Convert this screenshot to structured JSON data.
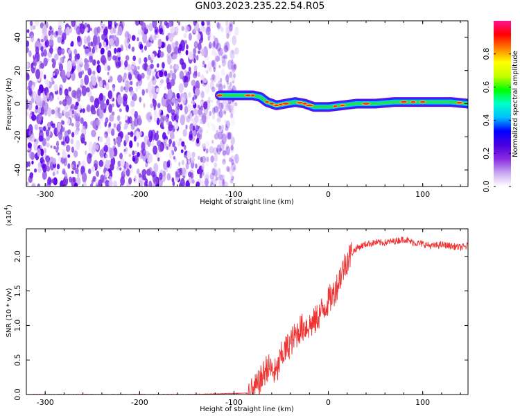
{
  "title": "GN03.2023.235.22.54.R05",
  "chart_data": [
    {
      "type": "heatmap",
      "xlabel": "Height of straight line (km)",
      "ylabel": "Frequency (Hz)",
      "xlim": [
        -320,
        148
      ],
      "ylim": [
        -50,
        50
      ],
      "xticks": [
        -300,
        -200,
        -100,
        0,
        100
      ],
      "yticks": [
        -40,
        -20,
        0,
        20,
        40
      ],
      "colorbar": {
        "label": "Normalized spectral amplitude",
        "range": [
          0,
          1
        ],
        "ticks": [
          "0.0",
          "0.2",
          "0.4",
          "0.6",
          "0.8"
        ],
        "colors": [
          "#ffffff",
          "#c8a6f0",
          "#8a2be2",
          "#4b00e0",
          "#0000ff",
          "#00bfff",
          "#00ffc8",
          "#00ff00",
          "#c8ff00",
          "#ffff00",
          "#ff8000",
          "#ff0000",
          "#ff1493"
        ]
      },
      "noise_region": {
        "x_range": [
          -320,
          -97
        ],
        "y_range": [
          -50,
          50
        ],
        "amplitude": "low"
      },
      "signal_ridge": [
        {
          "x": -115,
          "y": 5
        },
        {
          "x": -100,
          "y": 5
        },
        {
          "x": -90,
          "y": 5
        },
        {
          "x": -80,
          "y": 5
        },
        {
          "x": -72,
          "y": 4
        },
        {
          "x": -65,
          "y": 1
        },
        {
          "x": -55,
          "y": -1
        },
        {
          "x": -45,
          "y": 0
        },
        {
          "x": -35,
          "y": 1
        },
        {
          "x": -25,
          "y": 0
        },
        {
          "x": -15,
          "y": -2
        },
        {
          "x": 0,
          "y": -2
        },
        {
          "x": 15,
          "y": -1
        },
        {
          "x": 30,
          "y": 0
        },
        {
          "x": 50,
          "y": 0
        },
        {
          "x": 70,
          "y": 1
        },
        {
          "x": 90,
          "y": 1
        },
        {
          "x": 110,
          "y": 1
        },
        {
          "x": 130,
          "y": 1
        },
        {
          "x": 148,
          "y": 0
        }
      ]
    },
    {
      "type": "line",
      "xlabel": "Height of straight line (km)",
      "ylabel": "SNR (10 * v/v)",
      "y_multiplier": "(x10",
      "y_exponent": "4",
      "y_multiplier_close": ")",
      "xlim": [
        -320,
        148
      ],
      "ylim": [
        0,
        2.4
      ],
      "xticks": [
        -300,
        -200,
        -100,
        0,
        100
      ],
      "yticks": [
        "0.0",
        "0.5",
        "1.0",
        "1.5",
        "2.0"
      ],
      "series": [
        {
          "color": "#ee3333",
          "x": [
            -320,
            -150,
            -85,
            -80,
            -75,
            -70,
            -65,
            -60,
            -55,
            -50,
            -45,
            -40,
            -35,
            -30,
            -25,
            -20,
            -15,
            -10,
            -5,
            0,
            5,
            10,
            15,
            20,
            25,
            30,
            40,
            50,
            60,
            70,
            80,
            90,
            100,
            110,
            120,
            130,
            140,
            148
          ],
          "y": [
            0.0,
            0.0,
            0.02,
            0.05,
            0.12,
            0.25,
            0.4,
            0.35,
            0.3,
            0.55,
            0.65,
            0.75,
            0.85,
            0.95,
            0.98,
            1.0,
            1.05,
            1.15,
            1.25,
            1.35,
            1.45,
            1.6,
            1.8,
            1.95,
            2.05,
            2.12,
            2.18,
            2.2,
            2.2,
            2.22,
            2.25,
            2.2,
            2.18,
            2.15,
            2.17,
            2.15,
            2.13,
            2.15
          ]
        }
      ]
    }
  ]
}
